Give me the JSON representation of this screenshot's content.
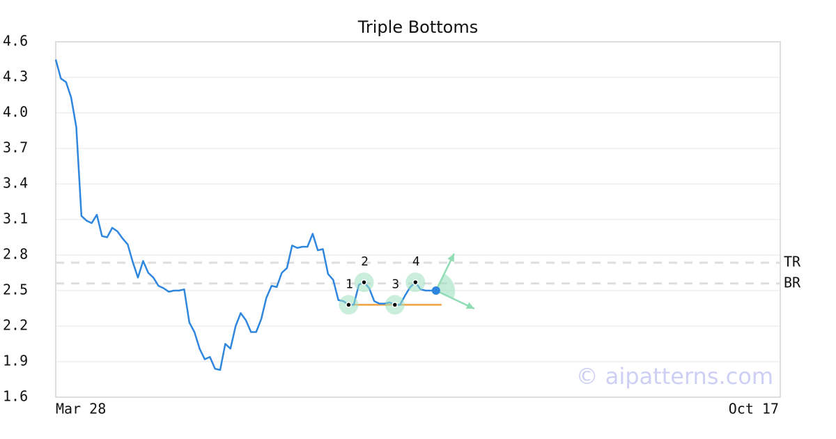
{
  "chart_data": {
    "type": "line",
    "title": "Triple Bottoms",
    "categories": [
      "Mar 28",
      null,
      null,
      null,
      null,
      null,
      null,
      null,
      null,
      null,
      null,
      null,
      null,
      null,
      null,
      null,
      null,
      null,
      null,
      null,
      null,
      null,
      null,
      null,
      null,
      null,
      null,
      null,
      null,
      null,
      null,
      null,
      null,
      null,
      null,
      null,
      null,
      null,
      null,
      null,
      null,
      null,
      null,
      null,
      null,
      null,
      null,
      null,
      null,
      null,
      null,
      null,
      null,
      null,
      null,
      null,
      null,
      null,
      null,
      null,
      null,
      null,
      null,
      null,
      null,
      null,
      null,
      null,
      null,
      null,
      null,
      null,
      null,
      null,
      null,
      null,
      null,
      null,
      null,
      null,
      null,
      null,
      null,
      null,
      null,
      null,
      null,
      null,
      null,
      null,
      null,
      null,
      null,
      null,
      null,
      null,
      null,
      null,
      null,
      null,
      null,
      null,
      null,
      null,
      null,
      null,
      null,
      null,
      null,
      null,
      null,
      null,
      null,
      null,
      null,
      null,
      null,
      null,
      null,
      null,
      null,
      null,
      null,
      null,
      null,
      null,
      null,
      null,
      null,
      null,
      null,
      null,
      null,
      null,
      null,
      null,
      null,
      null,
      null,
      null,
      null,
      "Oct 17"
    ],
    "values": [
      4.45,
      4.29,
      4.26,
      4.13,
      3.88,
      3.13,
      3.09,
      3.07,
      3.14,
      2.96,
      2.95,
      3.03,
      3.0,
      2.94,
      2.89,
      2.74,
      2.61,
      2.75,
      2.65,
      2.61,
      2.54,
      2.52,
      2.49,
      2.5,
      2.5,
      2.51,
      2.23,
      2.15,
      2.01,
      1.92,
      1.94,
      1.84,
      1.83,
      2.05,
      2.01,
      2.2,
      2.31,
      2.25,
      2.15,
      2.15,
      2.26,
      2.44,
      2.54,
      2.53,
      2.65,
      2.69,
      2.88,
      2.86,
      2.87,
      2.87,
      2.98,
      2.84,
      2.85,
      2.64,
      2.59,
      2.42,
      2.41,
      2.38,
      2.38,
      2.55,
      2.57,
      2.52,
      2.41,
      2.39,
      2.39,
      2.4,
      2.38,
      2.38,
      2.46,
      2.53,
      2.57,
      2.51,
      2.5,
      2.5,
      2.5,
      null,
      null,
      null,
      null,
      null,
      null,
      null,
      null,
      null,
      null,
      null,
      null,
      null,
      null,
      null,
      null,
      null,
      null,
      null,
      null,
      null,
      null,
      null,
      null,
      null,
      null,
      null,
      null,
      null,
      null,
      null,
      null,
      null,
      null,
      null,
      null,
      null,
      null,
      null,
      null,
      null,
      null,
      null,
      null,
      null,
      null,
      null,
      null,
      null,
      null,
      null,
      null,
      null,
      null,
      null,
      null,
      null,
      null,
      null,
      null,
      null,
      null,
      null,
      null,
      null,
      null,
      null
    ],
    "color": "#2e86de",
    "ylim": [
      1.6,
      4.6
    ],
    "yticks": [
      1.6,
      1.9,
      2.2,
      2.5,
      2.8,
      3.1,
      3.4,
      3.7,
      {
        "value": 4,
        "label": "4.0"
      },
      4.3,
      4.6
    ],
    "grid": true,
    "pattern_points": [
      {
        "label": "1",
        "category": 57,
        "value": 2.38
      },
      {
        "label": "2",
        "category": 60,
        "value": 2.57
      },
      {
        "label": "3",
        "category": 66,
        "value": 2.38
      },
      {
        "label": "4",
        "category": 70,
        "value": 2.57
      }
    ],
    "support": {
      "value": 2.38,
      "color": "#f0a040"
    },
    "levels": [
      {
        "label": "TR",
        "value": 2.735
      },
      {
        "label": "BR",
        "value": 2.56
      }
    ],
    "watermark": "© aipatterns.com"
  }
}
